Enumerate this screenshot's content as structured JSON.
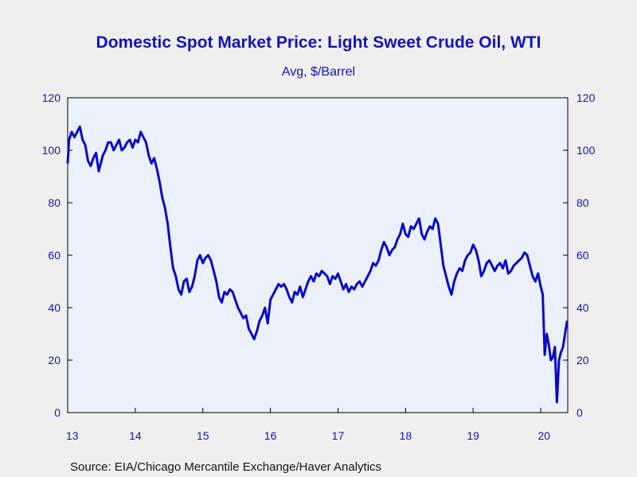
{
  "chart_data": {
    "type": "line",
    "title": "Domestic Spot Market Price: Light Sweet Crude Oil, WTI",
    "subtitle": "Avg, $/Barrel",
    "source": "Source:  EIA/Chicago Mercantile Exchange/Haver Analytics",
    "ylim": [
      0,
      120
    ],
    "y_ticks": [
      "0",
      "20",
      "40",
      "60",
      "80",
      "100",
      "120"
    ],
    "xlim": [
      2013.0,
      2020.4
    ],
    "x_ticks": [
      {
        "value": 2013.0,
        "label": "13"
      },
      {
        "value": 2014.0,
        "label": "14"
      },
      {
        "value": 2015.0,
        "label": "15"
      },
      {
        "value": 2016.0,
        "label": "16"
      },
      {
        "value": 2017.0,
        "label": "17"
      },
      {
        "value": 2018.0,
        "label": "18"
      },
      {
        "value": 2019.0,
        "label": "19"
      },
      {
        "value": 2020.0,
        "label": "20"
      }
    ],
    "grid": false,
    "line_color": "#0a0ac8",
    "plot_background": "#eaf1fb",
    "series": [
      {
        "x": [
          2013.0,
          2013.02,
          2013.06,
          2013.1,
          2013.14,
          2013.18,
          2013.22,
          2013.26,
          2013.3,
          2013.34,
          2013.38,
          2013.42,
          2013.46,
          2013.5,
          2013.52,
          2013.56,
          2013.6,
          2013.64,
          2013.68,
          2013.72,
          2013.76,
          2013.8,
          2013.84,
          2013.88,
          2013.92,
          2013.96,
          2014.0,
          2014.04,
          2014.08,
          2014.12,
          2014.16,
          2014.2,
          2014.24,
          2014.28,
          2014.32,
          2014.36,
          2014.4,
          2014.44,
          2014.48,
          2014.52,
          2014.56,
          2014.6,
          2014.64,
          2014.68,
          2014.72,
          2014.76,
          2014.8,
          2014.84,
          2014.88,
          2014.92,
          2014.96,
          2015.0,
          2015.04,
          2015.08,
          2015.12,
          2015.16,
          2015.2,
          2015.24,
          2015.28,
          2015.32,
          2015.36,
          2015.4,
          2015.44,
          2015.48,
          2015.52,
          2015.56,
          2015.6,
          2015.64,
          2015.68,
          2015.72,
          2015.76,
          2015.8,
          2015.84,
          2015.88,
          2015.92,
          2015.96,
          2016.0,
          2016.04,
          2016.08,
          2016.12,
          2016.16,
          2016.2,
          2016.24,
          2016.28,
          2016.32,
          2016.36,
          2016.4,
          2016.44,
          2016.48,
          2016.52,
          2016.56,
          2016.6,
          2016.64,
          2016.68,
          2016.72,
          2016.76,
          2016.8,
          2016.84,
          2016.88,
          2016.92,
          2016.96,
          2017.0,
          2017.04,
          2017.08,
          2017.12,
          2017.16,
          2017.2,
          2017.24,
          2017.28,
          2017.32,
          2017.36,
          2017.4,
          2017.44,
          2017.48,
          2017.52,
          2017.56,
          2017.6,
          2017.64,
          2017.68,
          2017.72,
          2017.76,
          2017.8,
          2017.84,
          2017.88,
          2017.92,
          2017.96,
          2018.0,
          2018.04,
          2018.08,
          2018.12,
          2018.16,
          2018.2,
          2018.24,
          2018.28,
          2018.32,
          2018.36,
          2018.4,
          2018.44,
          2018.48,
          2018.52,
          2018.56,
          2018.6,
          2018.64,
          2018.68,
          2018.72,
          2018.76,
          2018.8,
          2018.84,
          2018.88,
          2018.92,
          2018.96,
          2019.0,
          2019.04,
          2019.08,
          2019.12,
          2019.16,
          2019.2,
          2019.24,
          2019.28,
          2019.32,
          2019.36,
          2019.4,
          2019.44,
          2019.48,
          2019.52,
          2019.56,
          2019.6,
          2019.64,
          2019.68,
          2019.72,
          2019.76,
          2019.8,
          2019.84,
          2019.88,
          2019.92,
          2019.96,
          2020.0,
          2020.03,
          2020.06,
          2020.09,
          2020.12,
          2020.15,
          2020.18,
          2020.21,
          2020.24,
          2020.27,
          2020.3,
          2020.33,
          2020.36,
          2020.39
        ],
        "values": [
          95,
          104,
          107,
          105,
          107,
          109,
          104,
          102,
          96,
          94,
          97,
          99,
          92,
          96,
          98,
          100,
          103,
          103,
          100,
          102,
          104,
          100,
          101,
          103,
          104,
          101,
          104,
          103,
          107,
          105,
          103,
          98,
          95,
          97,
          93,
          88,
          82,
          78,
          72,
          63,
          55,
          52,
          47,
          45,
          50,
          51,
          46,
          48,
          52,
          58,
          60,
          57,
          59,
          60,
          58,
          54,
          50,
          44,
          42,
          46,
          45,
          47,
          46,
          43,
          40,
          38,
          36,
          37,
          32,
          30,
          28,
          31,
          35,
          37,
          40,
          34,
          43,
          45,
          47,
          49,
          48,
          49,
          47,
          44,
          42,
          46,
          45,
          48,
          44,
          47,
          50,
          52,
          50,
          53,
          52,
          54,
          53,
          52,
          49,
          52,
          51,
          53,
          50,
          47,
          49,
          46,
          48,
          47,
          49,
          50,
          48,
          50,
          52,
          54,
          57,
          56,
          58,
          62,
          65,
          63,
          60,
          62,
          63,
          66,
          68,
          72,
          68,
          67,
          71,
          70,
          72,
          74,
          68,
          66,
          69,
          71,
          70,
          74,
          72,
          64,
          56,
          52,
          48,
          45,
          50,
          53,
          55,
          54,
          58,
          60,
          61,
          64,
          62,
          58,
          52,
          54,
          57,
          58,
          56,
          54,
          56,
          57,
          55,
          58,
          53,
          54,
          56,
          57,
          58,
          59,
          61,
          60,
          56,
          52,
          50,
          53,
          48,
          45,
          22,
          30,
          26,
          20,
          21,
          25,
          4,
          20,
          23,
          25,
          30,
          35
        ]
      }
    ]
  }
}
